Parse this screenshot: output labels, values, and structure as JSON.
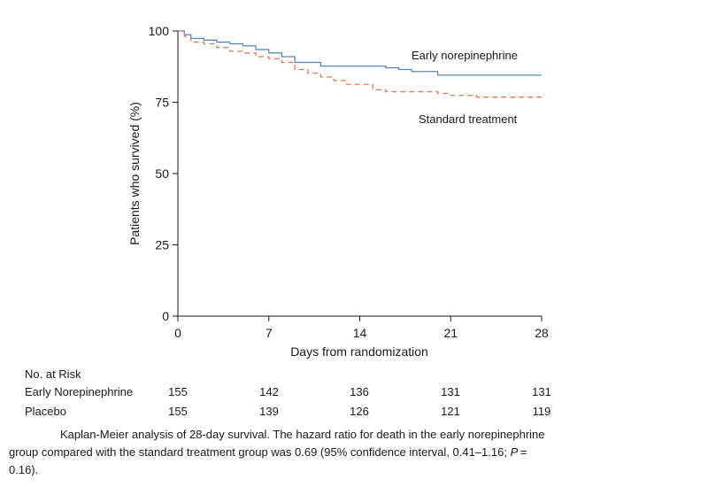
{
  "chart_data": {
    "type": "line",
    "xlabel": "Days from randomization",
    "ylabel": "Patients who survived (%)",
    "xlim": [
      0,
      28
    ],
    "ylim": [
      0,
      100
    ],
    "x_ticks": [
      0,
      7,
      14,
      21,
      28
    ],
    "y_ticks": [
      0,
      25,
      50,
      75,
      100
    ],
    "grid": false,
    "series": [
      {
        "name": "Early norepinephrine",
        "style": "solid",
        "color": "#5b87c3",
        "step": true,
        "points": [
          [
            0,
            100
          ],
          [
            0.5,
            98.7
          ],
          [
            1,
            97.4
          ],
          [
            2,
            96.8
          ],
          [
            3,
            96.1
          ],
          [
            4,
            95.5
          ],
          [
            5,
            94.8
          ],
          [
            6,
            93.5
          ],
          [
            7,
            92.3
          ],
          [
            8,
            91.0
          ],
          [
            9,
            89.0
          ],
          [
            10,
            89.0
          ],
          [
            11,
            87.7
          ],
          [
            12,
            87.7
          ],
          [
            13,
            87.7
          ],
          [
            14,
            87.7
          ],
          [
            15,
            87.7
          ],
          [
            16,
            87.1
          ],
          [
            17,
            86.5
          ],
          [
            18,
            85.8
          ],
          [
            19,
            85.8
          ],
          [
            20,
            84.5
          ],
          [
            21,
            84.5
          ],
          [
            28,
            84.5
          ]
        ]
      },
      {
        "name": "Standard treatment",
        "style": "dashed",
        "color": "#e07b5a",
        "step": true,
        "points": [
          [
            0,
            100
          ],
          [
            0.5,
            98.1
          ],
          [
            1,
            96.1
          ],
          [
            2,
            95.5
          ],
          [
            3,
            94.2
          ],
          [
            4,
            92.9
          ],
          [
            5,
            92.3
          ],
          [
            6,
            91.0
          ],
          [
            7,
            90.3
          ],
          [
            8,
            89.0
          ],
          [
            9,
            86.5
          ],
          [
            10,
            85.2
          ],
          [
            11,
            83.9
          ],
          [
            12,
            82.6
          ],
          [
            13,
            81.3
          ],
          [
            14,
            81.3
          ],
          [
            15,
            79.4
          ],
          [
            16,
            78.7
          ],
          [
            17,
            78.7
          ],
          [
            18,
            78.7
          ],
          [
            19,
            78.7
          ],
          [
            20,
            78.1
          ],
          [
            21,
            77.4
          ],
          [
            22,
            77.4
          ],
          [
            23,
            76.8
          ],
          [
            24,
            76.8
          ],
          [
            25,
            76.8
          ],
          [
            26,
            76.8
          ],
          [
            27,
            76.8
          ],
          [
            28,
            76.8
          ]
        ]
      }
    ]
  },
  "risk_table": {
    "title": "No. at Risk",
    "rows": [
      {
        "group": "Early Norepinephrine",
        "values": [
          "155",
          "142",
          "136",
          "131",
          "131"
        ]
      },
      {
        "group": "Placebo",
        "values": [
          "155",
          "139",
          "126",
          "121",
          "119"
        ]
      }
    ]
  },
  "caption": {
    "text_before_p": "Kaplan-Meier analysis of 28-day survival. The hazard ratio for death in the early norepinephrine group compared with the standard treatment group was 0.69 (95% confidence interval, 0.41–1.16; ",
    "p_symbol": "P",
    "text_after_p": " = 0.16)."
  }
}
